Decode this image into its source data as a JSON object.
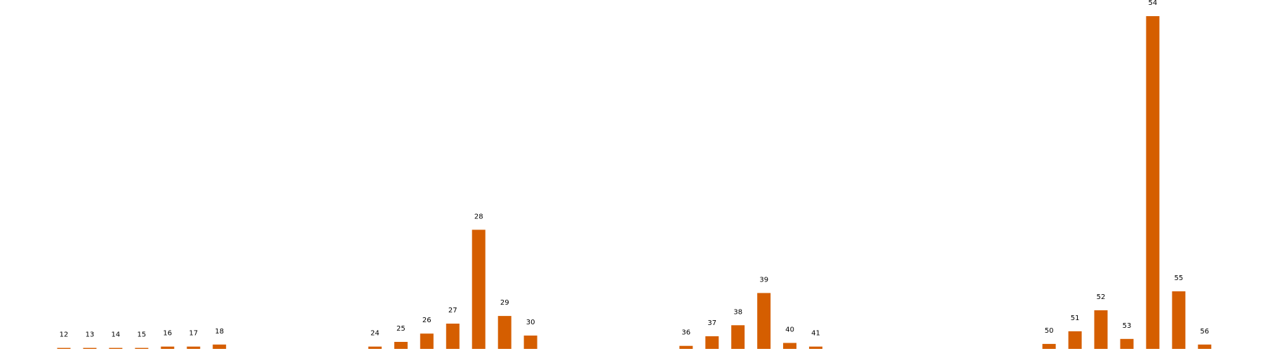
{
  "chart_data": {
    "type": "bar",
    "title": "",
    "xlabel": "",
    "ylabel": "",
    "grid": false,
    "axes_visible": false,
    "bar_color": "#d55e00",
    "ylim": [
      0,
      100
    ],
    "categories": [
      "12",
      "13",
      "14",
      "15",
      "16",
      "17",
      "18",
      "24",
      "25",
      "26",
      "27",
      "28",
      "29",
      "30",
      "36",
      "37",
      "38",
      "39",
      "40",
      "41",
      "50",
      "51",
      "52",
      "53",
      "54",
      "55",
      "56"
    ],
    "values": [
      0.3,
      0.3,
      0.3,
      0.3,
      0.7,
      0.7,
      1.3,
      0.7,
      2.1,
      4.6,
      7.6,
      35.8,
      9.9,
      4.0,
      0.9,
      3.8,
      7.1,
      16.8,
      1.8,
      0.7,
      1.5,
      5.3,
      11.6,
      3.0,
      100,
      17.3,
      1.3
    ]
  }
}
